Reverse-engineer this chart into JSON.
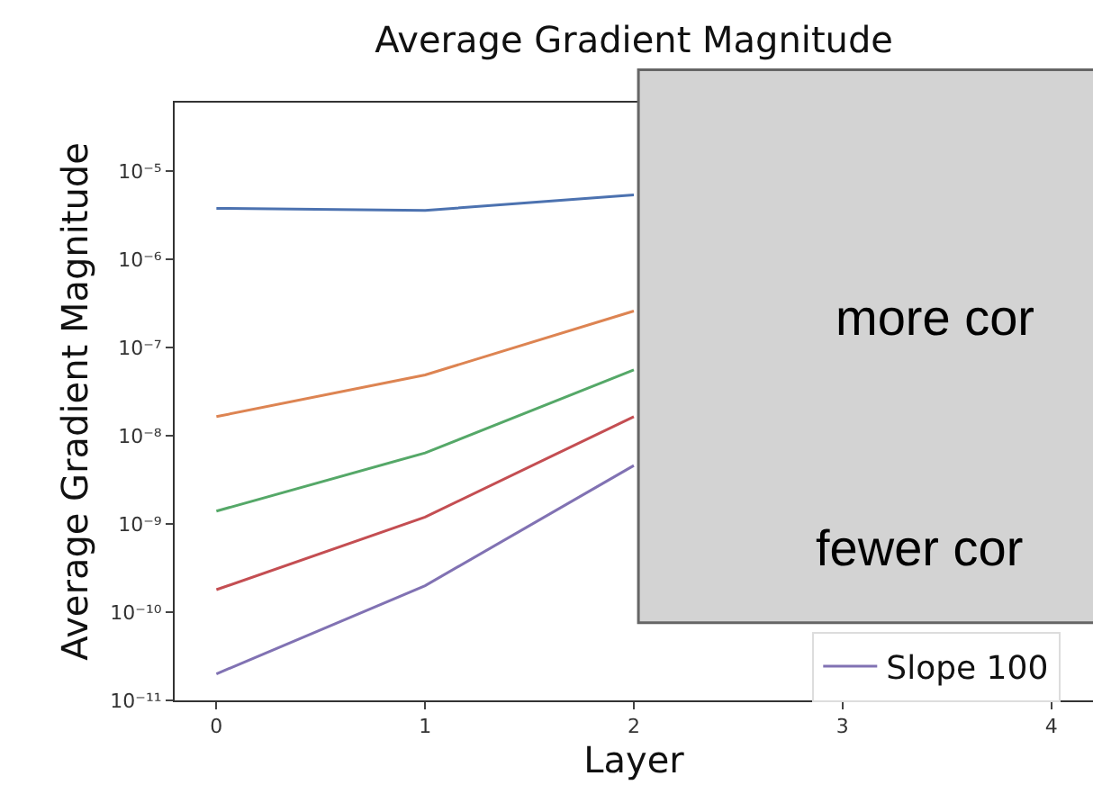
{
  "chart_data": {
    "type": "line",
    "title": "Average Gradient Magnitude",
    "xlabel": "Layer",
    "ylabel": "Average Gradient Magnitude",
    "x": [
      0,
      1,
      2
    ],
    "series": [
      {
        "color": "#4c72b0",
        "values": [
          3.8e-06,
          3.6e-06,
          5.4e-06
        ]
      },
      {
        "color": "#dd8452",
        "values": [
          1.65e-08,
          4.9e-08,
          2.6e-07
        ]
      },
      {
        "color": "#55a868",
        "values": [
          1.4e-09,
          6.4e-09,
          5.6e-08
        ]
      },
      {
        "color": "#c44e52",
        "values": [
          1.8e-10,
          1.2e-09,
          1.65e-08
        ]
      },
      {
        "name": "Slope 100",
        "color": "#8172b3",
        "values": [
          2e-11,
          2e-10,
          4.6e-09
        ]
      }
    ],
    "log": "y",
    "xlim": [
      -0.2,
      4.2
    ],
    "ylim": [
      1e-11,
      6e-05
    ],
    "xticks": [
      0,
      1,
      2,
      3,
      4
    ],
    "yticks": [
      {
        "value": 1e-11,
        "label": "10⁻¹¹"
      },
      {
        "value": 1e-10,
        "label": "10⁻¹⁰"
      },
      {
        "value": 1e-09,
        "label": "10⁻⁹"
      },
      {
        "value": 1e-08,
        "label": "10⁻⁸"
      },
      {
        "value": 1e-07,
        "label": "10⁻⁷"
      },
      {
        "value": 1e-06,
        "label": "10⁻⁶"
      },
      {
        "value": 1e-05,
        "label": "10⁻⁵"
      }
    ],
    "annotations": [
      "more cor",
      "fewer cor"
    ],
    "legend": "bottom right",
    "marker": "none",
    "line_style": "solid"
  }
}
